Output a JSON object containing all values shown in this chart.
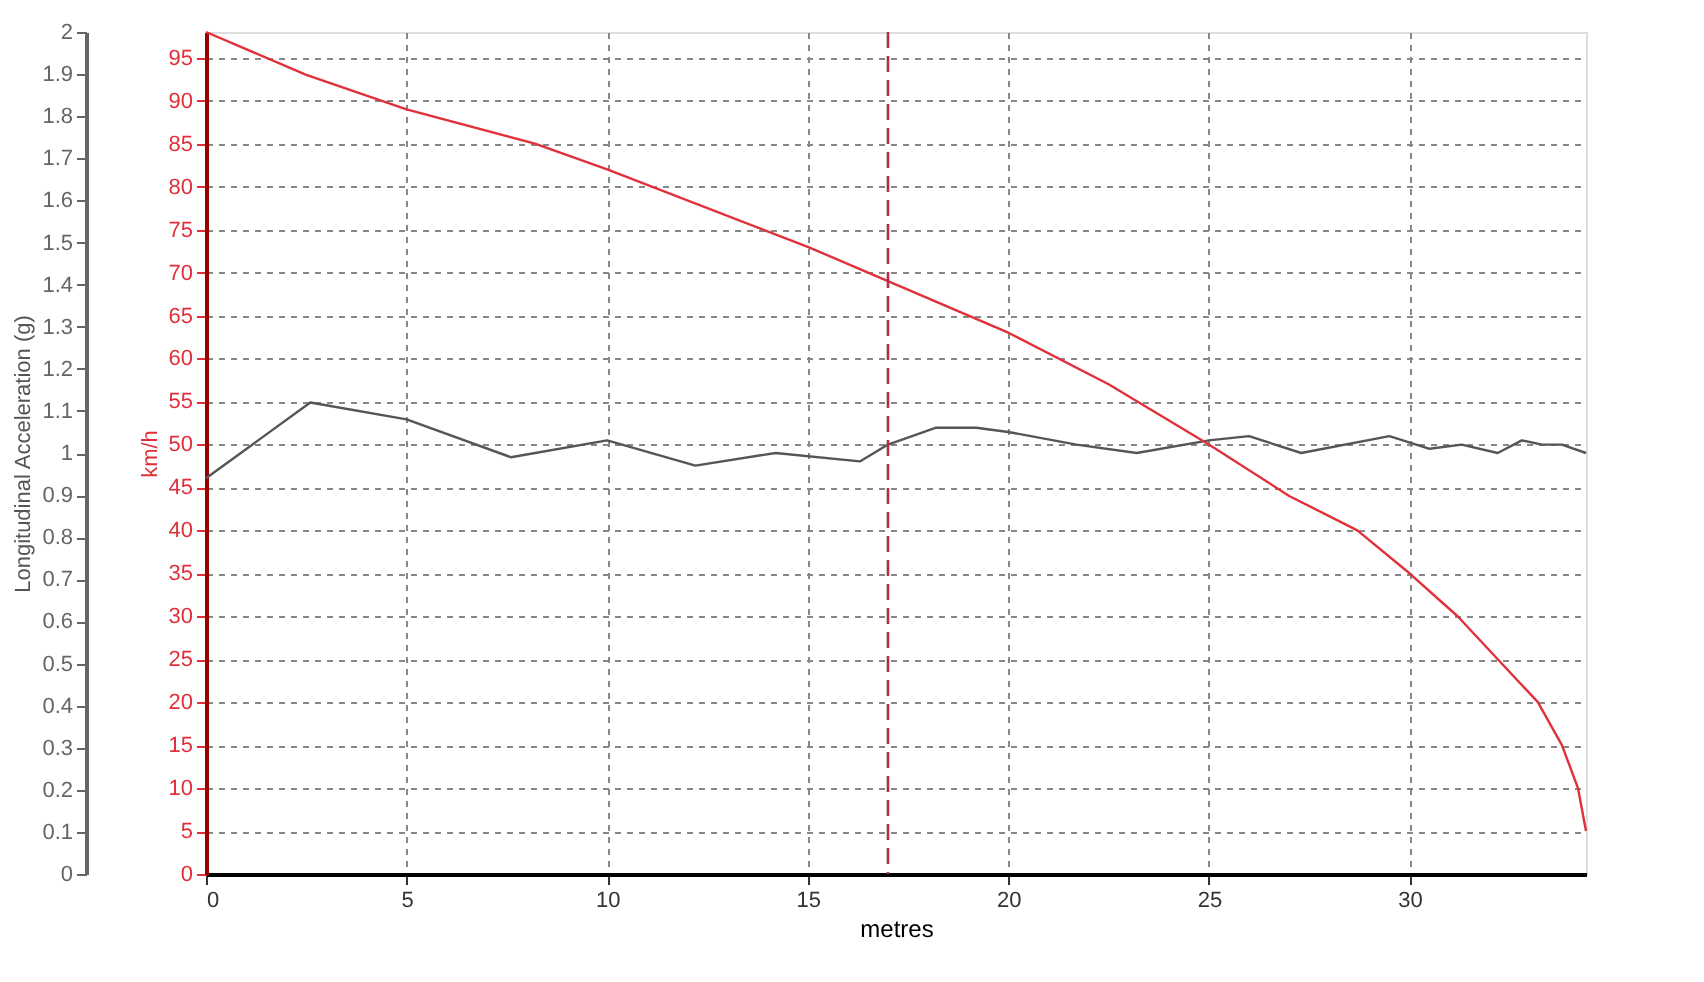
{
  "chart_data": {
    "type": "line",
    "xlabel": "metres",
    "ylabel": "Longitudinal Acceleration (g)",
    "y2label": "km/h",
    "xlim": [
      0,
      34.4
    ],
    "xticks": [
      0,
      5,
      10,
      15,
      20,
      25,
      30
    ],
    "ylim": [
      0,
      2
    ],
    "yticks": [
      0,
      0.1,
      0.2,
      0.3,
      0.4,
      0.5,
      0.6,
      0.7,
      0.8,
      0.9,
      1,
      1.1,
      1.2,
      1.3,
      1.4,
      1.5,
      1.6,
      1.7,
      1.8,
      1.9,
      2
    ],
    "y2lim": [
      0,
      98
    ],
    "y2ticks": [
      0,
      5,
      10,
      15,
      20,
      25,
      30,
      35,
      40,
      45,
      50,
      55,
      60,
      65,
      70,
      75,
      80,
      85,
      90,
      95
    ],
    "grid": true,
    "series": [
      {
        "color": "#555555",
        "x": [
          0,
          2.6,
          5,
          7.6,
          10,
          12.2,
          14.2,
          16.3,
          17,
          18.2,
          19.2,
          20,
          21.7,
          23.2,
          25,
          26,
          27.3,
          29.5,
          30.5,
          31.3,
          32.2,
          32.8,
          33.3,
          33.8,
          34.4
        ],
        "values": [
          0.94,
          1.12,
          1.08,
          0.99,
          1.03,
          0.97,
          1.0,
          0.98,
          1.02,
          1.06,
          1.06,
          1.05,
          1.02,
          1.0,
          1.03,
          1.04,
          1.0,
          1.04,
          1.01,
          1.02,
          1.0,
          1.03,
          1.02,
          1.02,
          1.0
        ]
      },
      {
        "color": "#e0303a",
        "axis": "y2",
        "x": [
          0,
          2.5,
          5,
          8.2,
          10,
          15,
          17,
          20,
          22.5,
          25,
          27,
          28.7,
          30,
          31.2,
          32.2,
          33.2,
          33.8,
          34.2,
          34.4
        ],
        "values": [
          98,
          93,
          89,
          85,
          82,
          73,
          69,
          63,
          57,
          50,
          44,
          40,
          35,
          30,
          25,
          20,
          15,
          10,
          5
        ]
      }
    ],
    "ref_lines": [
      {
        "axis": "x",
        "value": 17,
        "color": "#b0304a",
        "line_style": "dashed"
      }
    ]
  }
}
